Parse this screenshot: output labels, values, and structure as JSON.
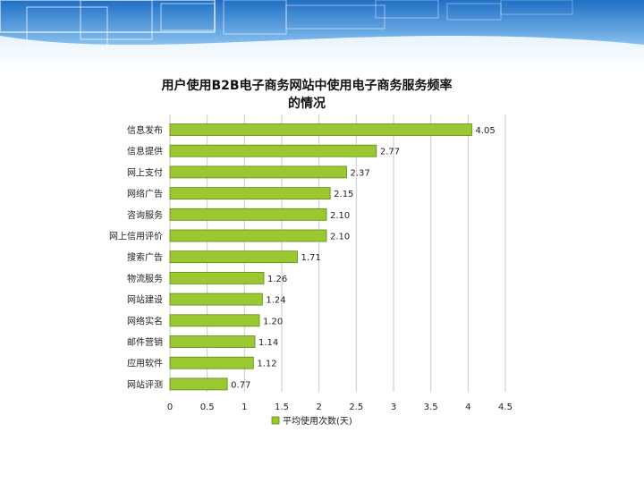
{
  "colors": {
    "bar_fill": "#9bc832",
    "bar_stroke": "#5e8a12",
    "gridline": "#c8c8c8",
    "header_blue": "#3a8bd6"
  },
  "chart_data": {
    "type": "bar",
    "orientation": "horizontal",
    "title": "用户使用B2B电子商务网站中使用电子商务服务频率的情况",
    "title_lines": [
      "用户使用B2B电子商务网站中使用电子商务服务频率",
      "的情况"
    ],
    "categories": [
      "信息发布",
      "信息提供",
      "网上支付",
      "网络广告",
      "咨询服务",
      "网上信用评价",
      "搜索广告",
      "物流服务",
      "网站建设",
      "网络实名",
      "邮件营销",
      "应用软件",
      "网站评测"
    ],
    "values": [
      4.05,
      2.77,
      2.37,
      2.15,
      2.1,
      2.1,
      1.71,
      1.26,
      1.24,
      1.2,
      1.14,
      1.12,
      0.77
    ],
    "value_labels": [
      "4.05",
      "2.77",
      "2.37",
      "2.15",
      "2.10",
      "2.10",
      "1.71",
      "1.26",
      "1.24",
      "1.20",
      "1.14",
      "1.12",
      "0.77"
    ],
    "x_ticks": [
      0,
      0.5,
      1,
      1.5,
      2,
      2.5,
      3,
      3.5,
      4,
      4.5
    ],
    "x_tick_labels": [
      "0",
      "0.5",
      "1",
      "1.5",
      "2",
      "2.5",
      "3",
      "3.5",
      "4",
      "4.5"
    ],
    "xlim": [
      0,
      4.5
    ],
    "grid": true,
    "legend": {
      "position": "bottom",
      "label": "平均使用次数(天)"
    }
  }
}
